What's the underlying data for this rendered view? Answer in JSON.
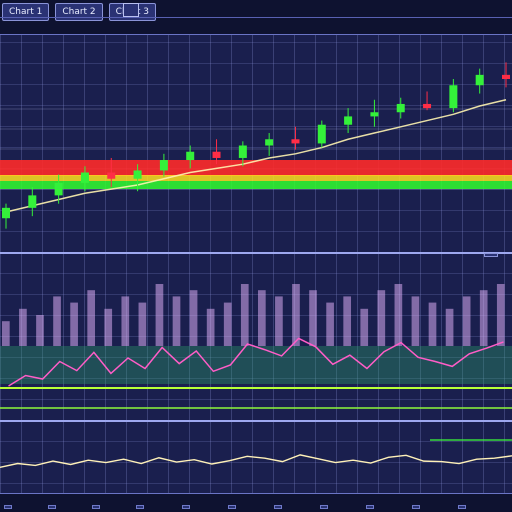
{
  "toolbar": {
    "tabs": [
      {
        "label": "Chart 1"
      },
      {
        "label": "Chart 2"
      },
      {
        "label": "Chart 3"
      }
    ]
  },
  "main_panel": {
    "candles": [
      {
        "open": 1.05,
        "high": 1.12,
        "low": 1.0,
        "close": 1.1
      },
      {
        "open": 1.1,
        "high": 1.2,
        "low": 1.06,
        "close": 1.16
      },
      {
        "open": 1.16,
        "high": 1.26,
        "low": 1.12,
        "close": 1.22
      },
      {
        "open": 1.22,
        "high": 1.3,
        "low": 1.18,
        "close": 1.27
      },
      {
        "open": 1.27,
        "high": 1.34,
        "low": 1.2,
        "close": 1.24
      },
      {
        "open": 1.24,
        "high": 1.31,
        "low": 1.18,
        "close": 1.28
      },
      {
        "open": 1.28,
        "high": 1.36,
        "low": 1.25,
        "close": 1.33
      },
      {
        "open": 1.33,
        "high": 1.4,
        "low": 1.29,
        "close": 1.37
      },
      {
        "open": 1.37,
        "high": 1.43,
        "low": 1.31,
        "close": 1.34
      },
      {
        "open": 1.34,
        "high": 1.42,
        "low": 1.3,
        "close": 1.4
      },
      {
        "open": 1.4,
        "high": 1.46,
        "low": 1.35,
        "close": 1.43
      },
      {
        "open": 1.43,
        "high": 1.49,
        "low": 1.38,
        "close": 1.41
      },
      {
        "open": 1.41,
        "high": 1.52,
        "low": 1.39,
        "close": 1.5
      },
      {
        "open": 1.5,
        "high": 1.58,
        "low": 1.46,
        "close": 1.54
      },
      {
        "open": 1.54,
        "high": 1.62,
        "low": 1.49,
        "close": 1.56
      },
      {
        "open": 1.56,
        "high": 1.63,
        "low": 1.53,
        "close": 1.6
      },
      {
        "open": 1.6,
        "high": 1.66,
        "low": 1.57,
        "close": 1.58
      },
      {
        "open": 1.58,
        "high": 1.72,
        "low": 1.56,
        "close": 1.69
      },
      {
        "open": 1.69,
        "high": 1.77,
        "low": 1.65,
        "close": 1.74
      },
      {
        "open": 1.74,
        "high": 1.8,
        "low": 1.68,
        "close": 1.72
      }
    ],
    "moving_average": [
      1.08,
      1.11,
      1.14,
      1.17,
      1.19,
      1.21,
      1.24,
      1.27,
      1.29,
      1.31,
      1.34,
      1.36,
      1.39,
      1.43,
      1.46,
      1.49,
      1.52,
      1.55,
      1.59,
      1.62
    ],
    "band_upper_color": "#ff2a2a",
    "band_middle_color": "#ffe21f",
    "band_lower_color": "#31ff2f",
    "up_color": "#34f13a",
    "down_color": "#ff2d46"
  },
  "oscillator_panel": {
    "histogram": [
      0.4,
      0.6,
      0.5,
      0.8,
      0.7,
      0.9,
      0.6,
      0.8,
      0.7,
      1.0,
      0.8,
      0.9,
      0.6,
      0.7,
      1.0,
      0.9,
      0.8,
      1.0,
      0.9,
      0.7,
      0.8,
      0.6,
      0.9,
      1.0,
      0.8,
      0.7,
      0.6,
      0.8,
      0.9,
      1.0
    ],
    "signal": [
      0.2,
      0.35,
      0.3,
      0.55,
      0.42,
      0.68,
      0.38,
      0.6,
      0.45,
      0.75,
      0.52,
      0.7,
      0.41,
      0.5,
      0.8,
      0.72,
      0.63,
      0.88,
      0.76,
      0.51,
      0.64,
      0.45,
      0.69,
      0.82,
      0.61,
      0.55,
      0.48,
      0.66,
      0.74,
      0.83
    ],
    "line_color": "#ff5dc7",
    "fill_color": "#2fa56a"
  },
  "bottom_panel": {
    "volume": [
      0.18,
      0.26,
      0.22,
      0.31,
      0.24,
      0.33,
      0.28,
      0.35,
      0.26,
      0.38,
      0.29,
      0.34,
      0.25,
      0.32,
      0.41,
      0.37,
      0.3,
      0.44,
      0.36,
      0.28,
      0.33,
      0.27,
      0.39,
      0.43,
      0.31,
      0.3,
      0.26,
      0.35,
      0.37,
      0.42
    ],
    "line_color": "#fff1b8",
    "accent_color": "#3cff39"
  }
}
